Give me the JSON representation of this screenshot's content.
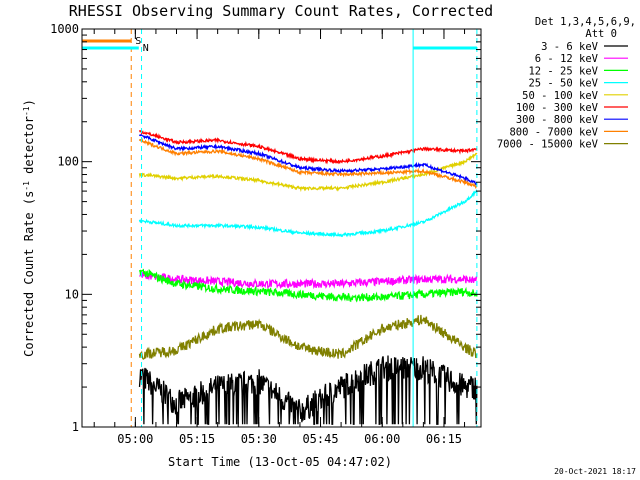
{
  "chart_data": {
    "type": "line",
    "title": "RHESSI Observing Summary Count Rates, Corrected",
    "xlabel": "Start Time (13-Oct-05 04:47:02)",
    "ylabel": "Corrected Count Rate (s⁻¹ detector⁻¹)",
    "ylabel_main": "Corrected Count Rate (s",
    "ylabel_sup1": "-1",
    "ylabel_mid": " detector",
    "ylabel_sup2": "-1",
    "ylabel_end": ")",
    "yscale": "log",
    "ylim": [
      1,
      1000
    ],
    "xlim": [
      "04:47:02",
      "06:24:00"
    ],
    "x_ticks": [
      "05:00",
      "05:15",
      "05:30",
      "05:45",
      "06:00",
      "06:15"
    ],
    "y_ticks": [
      "1",
      "10",
      "100",
      "1000"
    ],
    "legend": {
      "placement": "top-right",
      "header_line1": "Det 1,3,4,5,6,9,",
      "header_line2": "Att 0",
      "entries": [
        "3 - 6 keV",
        "6 - 12 keV",
        "12 - 25 keV",
        "25 - 50 keV",
        "50 - 100 keV",
        "100 - 300 keV",
        "300 - 800 keV",
        "800 - 7000 keV",
        "7000 - 15000 keV"
      ]
    },
    "markers": [
      {
        "label": "S",
        "time": "04:59:00",
        "color": "#ff8000"
      },
      {
        "label": "N",
        "time": "05:00:50",
        "color": "#00ffff"
      }
    ],
    "vlines": [
      {
        "time": "04:59:00",
        "color": "#ff8000",
        "style": "dashed"
      },
      {
        "time": "05:01:30",
        "color": "#00ffff",
        "style": "dashed"
      },
      {
        "time": "06:07:30",
        "color": "#00ffff",
        "style": "solid"
      },
      {
        "time": "06:23:00",
        "color": "#00ffff",
        "style": "dashed"
      }
    ],
    "series": [
      {
        "name": "3 - 6 keV",
        "color": "#000000",
        "x": [
          "05:01",
          "05:10",
          "05:20",
          "05:30",
          "05:40",
          "05:50",
          "06:00",
          "06:10",
          "06:20",
          "06:23"
        ],
        "y": [
          2.5,
          1.5,
          2.0,
          2.2,
          1.3,
          2.0,
          2.8,
          2.8,
          2.0,
          2.0
        ]
      },
      {
        "name": "6 - 12 keV",
        "color": "#ff00ff",
        "x": [
          "05:01",
          "05:10",
          "05:20",
          "05:30",
          "05:40",
          "05:50",
          "06:00",
          "06:10",
          "06:20",
          "06:23"
        ],
        "y": [
          14,
          13,
          12.5,
          12,
          12,
          12,
          12.5,
          13,
          13,
          12.5
        ]
      },
      {
        "name": "12 - 25 keV",
        "color": "#00ff00",
        "x": [
          "05:01",
          "05:10",
          "05:20",
          "05:30",
          "05:40",
          "05:50",
          "06:00",
          "06:10",
          "06:20",
          "06:23"
        ],
        "y": [
          15,
          12,
          11,
          10.5,
          10,
          9.5,
          9.5,
          10,
          10.5,
          10
        ]
      },
      {
        "name": "25 - 50 keV",
        "color": "#00ffff",
        "x": [
          "05:01",
          "05:10",
          "05:20",
          "05:30",
          "05:40",
          "05:50",
          "06:00",
          "06:10",
          "06:20",
          "06:23"
        ],
        "y": [
          36,
          33,
          33,
          32,
          29,
          28,
          30,
          35,
          50,
          60
        ]
      },
      {
        "name": "50 - 100 keV",
        "color": "#e0d000",
        "x": [
          "05:01",
          "05:10",
          "05:20",
          "05:30",
          "05:40",
          "05:50",
          "06:00",
          "06:10",
          "06:20",
          "06:23"
        ],
        "y": [
          80,
          75,
          78,
          72,
          63,
          63,
          70,
          80,
          100,
          115
        ]
      },
      {
        "name": "100 - 300 keV",
        "color": "#ff0000",
        "x": [
          "05:01",
          "05:10",
          "05:20",
          "05:30",
          "05:40",
          "05:50",
          "06:00",
          "06:10",
          "06:20",
          "06:23"
        ],
        "y": [
          170,
          140,
          145,
          130,
          105,
          100,
          110,
          125,
          120,
          125
        ]
      },
      {
        "name": "300 - 800 keV",
        "color": "#0000ff",
        "x": [
          "05:01",
          "05:10",
          "05:20",
          "05:30",
          "05:40",
          "05:50",
          "06:00",
          "06:10",
          "06:20",
          "06:23"
        ],
        "y": [
          160,
          125,
          130,
          115,
          90,
          85,
          88,
          95,
          75,
          68
        ]
      },
      {
        "name": "800 - 7000 keV",
        "color": "#ff8000",
        "x": [
          "05:01",
          "05:10",
          "05:20",
          "05:30",
          "05:40",
          "05:50",
          "06:00",
          "06:10",
          "06:20",
          "06:23"
        ],
        "y": [
          145,
          115,
          120,
          105,
          83,
          80,
          82,
          85,
          70,
          65
        ]
      },
      {
        "name": "7000 - 15000 keV",
        "color": "#808000",
        "x": [
          "05:01",
          "05:10",
          "05:20",
          "05:30",
          "05:40",
          "05:50",
          "06:00",
          "06:10",
          "06:20",
          "06:23"
        ],
        "y": [
          3.5,
          3.8,
          5.5,
          6.0,
          4.0,
          3.5,
          5.5,
          6.5,
          4.0,
          3.5
        ]
      }
    ]
  },
  "footer": {
    "date": "20-Oct-2021 18:17"
  }
}
